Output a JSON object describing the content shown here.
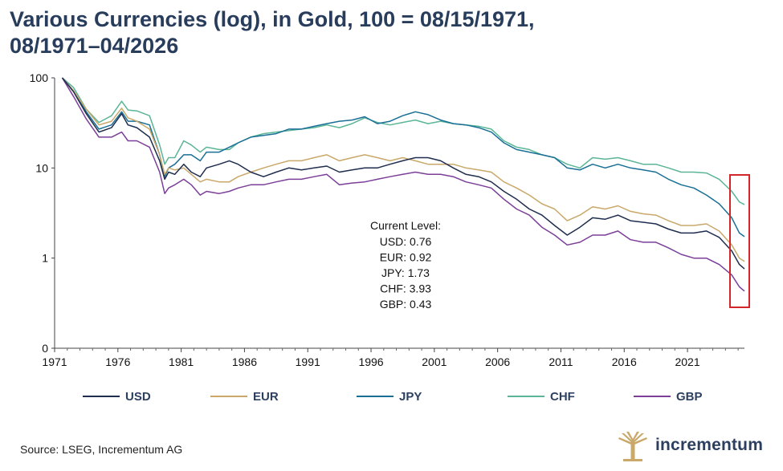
{
  "header": {
    "title_line1": "Various Currencies (log), in Gold, 100 = 08/15/1971,",
    "title_line2": "08/1971–04/2026"
  },
  "footer": {
    "source": "Source: LSEG, Incrementum AG",
    "logo_text": "incrementum"
  },
  "annotation": {
    "heading": "Current Level:",
    "lines": [
      "USD: 0.76",
      "EUR: 0.92",
      "JPY: 1.73",
      "CHF: 3.93",
      "GBP: 0.43"
    ],
    "highlight_box_color": "#d3262a"
  },
  "chart_data": {
    "type": "line",
    "yscale": "log",
    "ylim": [
      0.1,
      100
    ],
    "y_tick_labels": [
      "100",
      "10",
      "1",
      "0"
    ],
    "y_tick_values": [
      100,
      10,
      1,
      0.1
    ],
    "xlim": [
      1971,
      2025.5
    ],
    "x_tick_labels": [
      "1971",
      "1976",
      "1981",
      "1986",
      "1991",
      "1996",
      "2001",
      "2006",
      "2011",
      "2016",
      "2021"
    ],
    "x_tick_values": [
      1971,
      1976,
      1981,
      1986,
      1991,
      1996,
      2001,
      2006,
      2011,
      2016,
      2021
    ],
    "legend_position": "bottom",
    "series": [
      {
        "name": "USD",
        "color": "#1f2d4e",
        "points": [
          [
            1971.6,
            100
          ],
          [
            1972.5,
            70
          ],
          [
            1973.5,
            40
          ],
          [
            1974.5,
            25
          ],
          [
            1975.5,
            28
          ],
          [
            1976.3,
            40
          ],
          [
            1976.8,
            30
          ],
          [
            1977.5,
            28
          ],
          [
            1978.5,
            22
          ],
          [
            1979.3,
            12
          ],
          [
            1979.7,
            7.5
          ],
          [
            1980.0,
            9
          ],
          [
            1980.5,
            8.5
          ],
          [
            1981.2,
            11
          ],
          [
            1981.8,
            9
          ],
          [
            1982.5,
            8
          ],
          [
            1983.0,
            10
          ],
          [
            1984.0,
            11
          ],
          [
            1984.8,
            12
          ],
          [
            1985.5,
            11
          ],
          [
            1986.5,
            9
          ],
          [
            1987.5,
            8
          ],
          [
            1988.5,
            9
          ],
          [
            1989.5,
            10
          ],
          [
            1990.5,
            9.5
          ],
          [
            1991.5,
            10
          ],
          [
            1992.5,
            10.5
          ],
          [
            1993.5,
            9
          ],
          [
            1994.5,
            9.5
          ],
          [
            1995.5,
            10
          ],
          [
            1996.5,
            10
          ],
          [
            1997.5,
            11
          ],
          [
            1998.5,
            12
          ],
          [
            1999.5,
            13
          ],
          [
            2000.5,
            13
          ],
          [
            2001.5,
            12
          ],
          [
            2002.5,
            10
          ],
          [
            2003.5,
            8.5
          ],
          [
            2004.5,
            8
          ],
          [
            2005.5,
            7
          ],
          [
            2006.5,
            5.5
          ],
          [
            2007.5,
            4.5
          ],
          [
            2008.5,
            3.5
          ],
          [
            2009.5,
            3
          ],
          [
            2010.5,
            2.3
          ],
          [
            2011.5,
            1.8
          ],
          [
            2012.5,
            2.2
          ],
          [
            2013.5,
            2.8
          ],
          [
            2014.5,
            2.7
          ],
          [
            2015.5,
            3
          ],
          [
            2016.5,
            2.6
          ],
          [
            2017.5,
            2.5
          ],
          [
            2018.5,
            2.4
          ],
          [
            2019.5,
            2.1
          ],
          [
            2020.5,
            1.9
          ],
          [
            2021.5,
            1.9
          ],
          [
            2022.5,
            2.0
          ],
          [
            2023.5,
            1.7
          ],
          [
            2024.5,
            1.2
          ],
          [
            2025.1,
            0.85
          ],
          [
            2025.5,
            0.76
          ]
        ]
      },
      {
        "name": "EUR",
        "color": "#c9a86a",
        "points": [
          [
            1971.6,
            100
          ],
          [
            1972.5,
            72
          ],
          [
            1973.5,
            45
          ],
          [
            1974.5,
            30
          ],
          [
            1975.5,
            33
          ],
          [
            1976.3,
            46
          ],
          [
            1976.8,
            36
          ],
          [
            1977.5,
            33
          ],
          [
            1978.5,
            27
          ],
          [
            1979.3,
            14
          ],
          [
            1979.7,
            8.5
          ],
          [
            1980.0,
            10
          ],
          [
            1980.5,
            9.5
          ],
          [
            1981.2,
            10
          ],
          [
            1981.8,
            8.5
          ],
          [
            1982.5,
            7
          ],
          [
            1983.0,
            7.5
          ],
          [
            1984.0,
            7
          ],
          [
            1984.8,
            7
          ],
          [
            1985.5,
            8
          ],
          [
            1986.5,
            9
          ],
          [
            1987.5,
            10
          ],
          [
            1988.5,
            11
          ],
          [
            1989.5,
            12
          ],
          [
            1990.5,
            12
          ],
          [
            1991.5,
            13
          ],
          [
            1992.5,
            14
          ],
          [
            1993.5,
            12
          ],
          [
            1994.5,
            13
          ],
          [
            1995.5,
            14
          ],
          [
            1996.5,
            13
          ],
          [
            1997.5,
            12
          ],
          [
            1998.5,
            13
          ],
          [
            1999.5,
            12
          ],
          [
            2000.5,
            11
          ],
          [
            2001.5,
            11
          ],
          [
            2002.5,
            11
          ],
          [
            2003.5,
            10
          ],
          [
            2004.5,
            9.5
          ],
          [
            2005.5,
            9
          ],
          [
            2006.5,
            7
          ],
          [
            2007.5,
            6
          ],
          [
            2008.5,
            5
          ],
          [
            2009.5,
            4
          ],
          [
            2010.5,
            3.5
          ],
          [
            2011.5,
            2.6
          ],
          [
            2012.5,
            3
          ],
          [
            2013.5,
            3.7
          ],
          [
            2014.5,
            3.5
          ],
          [
            2015.5,
            3.8
          ],
          [
            2016.5,
            3.3
          ],
          [
            2017.5,
            3.1
          ],
          [
            2018.5,
            3.0
          ],
          [
            2019.5,
            2.6
          ],
          [
            2020.5,
            2.3
          ],
          [
            2021.5,
            2.3
          ],
          [
            2022.5,
            2.4
          ],
          [
            2023.5,
            2.0
          ],
          [
            2024.5,
            1.4
          ],
          [
            2025.1,
            1.0
          ],
          [
            2025.5,
            0.92
          ]
        ]
      },
      {
        "name": "JPY",
        "color": "#1a6f96",
        "points": [
          [
            1971.6,
            100
          ],
          [
            1972.5,
            72
          ],
          [
            1973.5,
            42
          ],
          [
            1974.5,
            27
          ],
          [
            1975.5,
            30
          ],
          [
            1976.3,
            42
          ],
          [
            1976.8,
            33
          ],
          [
            1977.5,
            33
          ],
          [
            1978.5,
            30
          ],
          [
            1979.3,
            14
          ],
          [
            1979.7,
            8
          ],
          [
            1980.0,
            10
          ],
          [
            1980.5,
            11
          ],
          [
            1981.2,
            14
          ],
          [
            1981.8,
            14
          ],
          [
            1982.5,
            12
          ],
          [
            1983.0,
            15
          ],
          [
            1984.0,
            15
          ],
          [
            1984.8,
            17
          ],
          [
            1985.5,
            19
          ],
          [
            1986.5,
            22
          ],
          [
            1987.5,
            23
          ],
          [
            1988.5,
            24
          ],
          [
            1989.5,
            27
          ],
          [
            1990.5,
            27
          ],
          [
            1991.5,
            29
          ],
          [
            1992.5,
            31
          ],
          [
            1993.5,
            33
          ],
          [
            1994.5,
            34
          ],
          [
            1995.5,
            37
          ],
          [
            1996.5,
            31
          ],
          [
            1997.5,
            33
          ],
          [
            1998.5,
            38
          ],
          [
            1999.5,
            42
          ],
          [
            2000.5,
            39
          ],
          [
            2001.5,
            34
          ],
          [
            2002.5,
            31
          ],
          [
            2003.5,
            30
          ],
          [
            2004.5,
            28
          ],
          [
            2005.5,
            25
          ],
          [
            2006.5,
            19
          ],
          [
            2007.5,
            16
          ],
          [
            2008.5,
            15
          ],
          [
            2009.5,
            14
          ],
          [
            2010.5,
            13
          ],
          [
            2011.5,
            10
          ],
          [
            2012.5,
            9.5
          ],
          [
            2013.5,
            11
          ],
          [
            2014.5,
            10
          ],
          [
            2015.5,
            11
          ],
          [
            2016.5,
            10
          ],
          [
            2017.5,
            9.5
          ],
          [
            2018.5,
            9
          ],
          [
            2019.5,
            7.5
          ],
          [
            2020.5,
            6.5
          ],
          [
            2021.5,
            6
          ],
          [
            2022.5,
            5
          ],
          [
            2023.5,
            4
          ],
          [
            2024.5,
            2.8
          ],
          [
            2025.1,
            1.9
          ],
          [
            2025.5,
            1.73
          ]
        ]
      },
      {
        "name": "CHF",
        "color": "#5bb596",
        "points": [
          [
            1971.6,
            100
          ],
          [
            1972.5,
            78
          ],
          [
            1973.5,
            45
          ],
          [
            1974.5,
            32
          ],
          [
            1975.5,
            38
          ],
          [
            1976.3,
            55
          ],
          [
            1976.8,
            44
          ],
          [
            1977.5,
            43
          ],
          [
            1978.5,
            38
          ],
          [
            1979.3,
            18
          ],
          [
            1979.7,
            11
          ],
          [
            1980.0,
            13
          ],
          [
            1980.5,
            13
          ],
          [
            1981.2,
            20
          ],
          [
            1981.8,
            18
          ],
          [
            1982.5,
            15
          ],
          [
            1983.0,
            17
          ],
          [
            1984.0,
            16
          ],
          [
            1984.8,
            16
          ],
          [
            1985.5,
            19
          ],
          [
            1986.5,
            22
          ],
          [
            1987.5,
            24
          ],
          [
            1988.5,
            25
          ],
          [
            1989.5,
            26
          ],
          [
            1990.5,
            27
          ],
          [
            1991.5,
            28
          ],
          [
            1992.5,
            30
          ],
          [
            1993.5,
            28
          ],
          [
            1994.5,
            31
          ],
          [
            1995.5,
            36
          ],
          [
            1996.5,
            32
          ],
          [
            1997.5,
            30
          ],
          [
            1998.5,
            32
          ],
          [
            1999.5,
            34
          ],
          [
            2000.5,
            31
          ],
          [
            2001.5,
            33
          ],
          [
            2002.5,
            31
          ],
          [
            2003.5,
            30
          ],
          [
            2004.5,
            29
          ],
          [
            2005.5,
            27
          ],
          [
            2006.5,
            20
          ],
          [
            2007.5,
            17
          ],
          [
            2008.5,
            16
          ],
          [
            2009.5,
            14
          ],
          [
            2010.5,
            13
          ],
          [
            2011.5,
            11
          ],
          [
            2012.5,
            10
          ],
          [
            2013.5,
            13
          ],
          [
            2014.5,
            12.5
          ],
          [
            2015.5,
            13
          ],
          [
            2016.5,
            12
          ],
          [
            2017.5,
            11
          ],
          [
            2018.5,
            11
          ],
          [
            2019.5,
            10
          ],
          [
            2020.5,
            9
          ],
          [
            2021.5,
            9
          ],
          [
            2022.5,
            8.8
          ],
          [
            2023.5,
            7.5
          ],
          [
            2024.5,
            5.5
          ],
          [
            2025.1,
            4.2
          ],
          [
            2025.5,
            3.93
          ]
        ]
      },
      {
        "name": "GBP",
        "color": "#7b3f99",
        "points": [
          [
            1971.6,
            100
          ],
          [
            1972.5,
            62
          ],
          [
            1973.5,
            35
          ],
          [
            1974.5,
            22
          ],
          [
            1975.5,
            22
          ],
          [
            1976.3,
            25
          ],
          [
            1976.8,
            20
          ],
          [
            1977.5,
            20
          ],
          [
            1978.5,
            17
          ],
          [
            1979.3,
            9
          ],
          [
            1979.7,
            5.2
          ],
          [
            1980.0,
            6
          ],
          [
            1980.5,
            6.5
          ],
          [
            1981.2,
            7.5
          ],
          [
            1981.8,
            6.5
          ],
          [
            1982.5,
            5
          ],
          [
            1983.0,
            5.5
          ],
          [
            1984.0,
            5.2
          ],
          [
            1984.8,
            5.5
          ],
          [
            1985.5,
            6
          ],
          [
            1986.5,
            6.5
          ],
          [
            1987.5,
            6.5
          ],
          [
            1988.5,
            7
          ],
          [
            1989.5,
            7.5
          ],
          [
            1990.5,
            7.5
          ],
          [
            1991.5,
            8
          ],
          [
            1992.5,
            8.5
          ],
          [
            1993.5,
            6.5
          ],
          [
            1994.5,
            6.8
          ],
          [
            1995.5,
            7
          ],
          [
            1996.5,
            7.5
          ],
          [
            1997.5,
            8
          ],
          [
            1998.5,
            8.5
          ],
          [
            1999.5,
            9
          ],
          [
            2000.5,
            8.5
          ],
          [
            2001.5,
            8.5
          ],
          [
            2002.5,
            8
          ],
          [
            2003.5,
            7
          ],
          [
            2004.5,
            6.5
          ],
          [
            2005.5,
            6
          ],
          [
            2006.5,
            4.5
          ],
          [
            2007.5,
            3.5
          ],
          [
            2008.5,
            3
          ],
          [
            2009.5,
            2.2
          ],
          [
            2010.5,
            1.8
          ],
          [
            2011.5,
            1.4
          ],
          [
            2012.5,
            1.5
          ],
          [
            2013.5,
            1.8
          ],
          [
            2014.5,
            1.8
          ],
          [
            2015.5,
            2.0
          ],
          [
            2016.5,
            1.6
          ],
          [
            2017.5,
            1.5
          ],
          [
            2018.5,
            1.5
          ],
          [
            2019.5,
            1.3
          ],
          [
            2020.5,
            1.1
          ],
          [
            2021.5,
            1.0
          ],
          [
            2022.5,
            1.0
          ],
          [
            2023.5,
            0.85
          ],
          [
            2024.5,
            0.65
          ],
          [
            2025.1,
            0.48
          ],
          [
            2025.5,
            0.43
          ]
        ]
      }
    ]
  }
}
